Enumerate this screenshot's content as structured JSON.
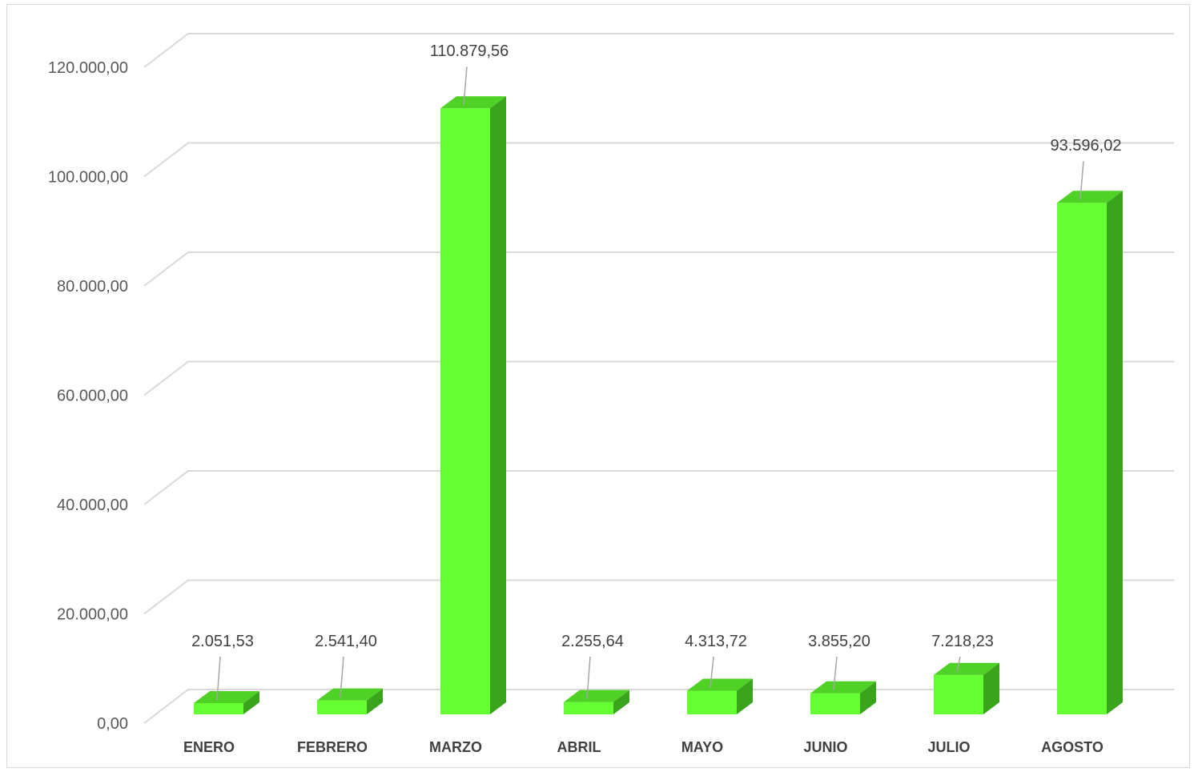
{
  "chart_data": {
    "type": "bar",
    "style": "3d-column",
    "categories": [
      "ENERO",
      "FEBRERO",
      "MARZO",
      "ABRIL",
      "MAYO",
      "JUNIO",
      "JULIO",
      "AGOSTO"
    ],
    "values": [
      2051.53,
      2541.4,
      110879.56,
      2255.64,
      4313.72,
      3855.2,
      7218.23,
      93596.02
    ],
    "data_labels": [
      "2.051,53",
      "2.541,40",
      "110.879,56",
      "2.255,64",
      "4.313,72",
      "3.855,20",
      "7.218,23",
      "93.596,02"
    ],
    "y_ticks": [
      0,
      20000,
      40000,
      60000,
      80000,
      100000,
      120000
    ],
    "y_tick_labels": [
      "0,00",
      "20.000,00",
      "40.000,00",
      "60.000,00",
      "80.000,00",
      "100.000,00",
      "120.000,00"
    ],
    "ylim": [
      0,
      120000
    ],
    "title": "",
    "xlabel": "",
    "ylabel": "",
    "grid": true,
    "legend": "none",
    "colors": {
      "bar_front": "#66ff33",
      "bar_top": "#4fd126",
      "bar_side": "#3aa51c",
      "grid": "#d9d9d9",
      "leader_line": "#a6a6a6"
    }
  }
}
